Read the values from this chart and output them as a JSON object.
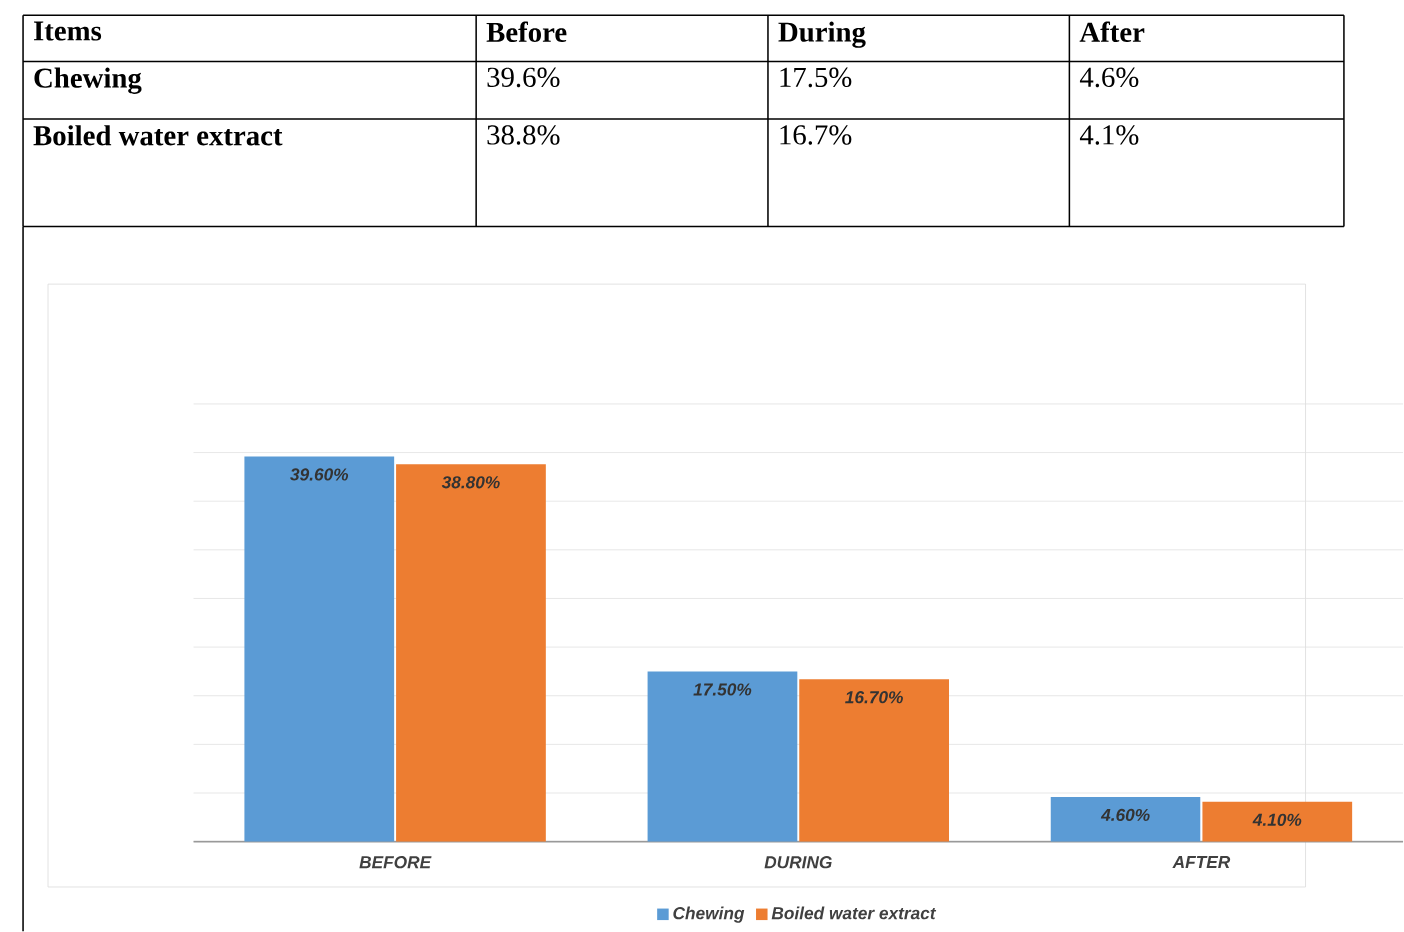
{
  "chart_data": [
    {
      "type": "other",
      "annotations": [
        "Items",
        "Before",
        "During",
        "After",
        "Chewing",
        "39.6%",
        "17.5%",
        "4.6%",
        "Boiled water extract",
        "38.8%",
        "16.7%",
        "4.1%"
      ]
    },
    {
      "type": "bar",
      "categories": [
        "BEFORE",
        "DURING",
        "AFTER"
      ],
      "series": [
        {
          "name": "Chewing",
          "color": "#5b9bd5",
          "values": [
            39.6,
            17.5,
            4.6
          ],
          "value_labels": [
            "39.60%",
            "17.50%",
            "4.60%"
          ]
        },
        {
          "name": "Boiled water extract",
          "color": "#ed7d31",
          "values": [
            38.8,
            16.7,
            4.1
          ],
          "value_labels": [
            "38.80%",
            "16.70%",
            "4.10%"
          ]
        }
      ],
      "ylim": [
        0,
        45
      ],
      "yticks": [
        {
          "value": 0,
          "label": null
        },
        {
          "value": 5,
          "label": null
        },
        {
          "value": 10,
          "label": null
        },
        {
          "value": 15,
          "label": null
        },
        {
          "value": 20,
          "label": null
        },
        {
          "value": 25,
          "label": null
        },
        {
          "value": 30,
          "label": null
        },
        {
          "value": 35,
          "label": null
        },
        {
          "value": 40,
          "label": null
        },
        {
          "value": 45,
          "label": null
        }
      ],
      "grid": "y",
      "tick_labels": "x",
      "legend": "bottom"
    }
  ]
}
